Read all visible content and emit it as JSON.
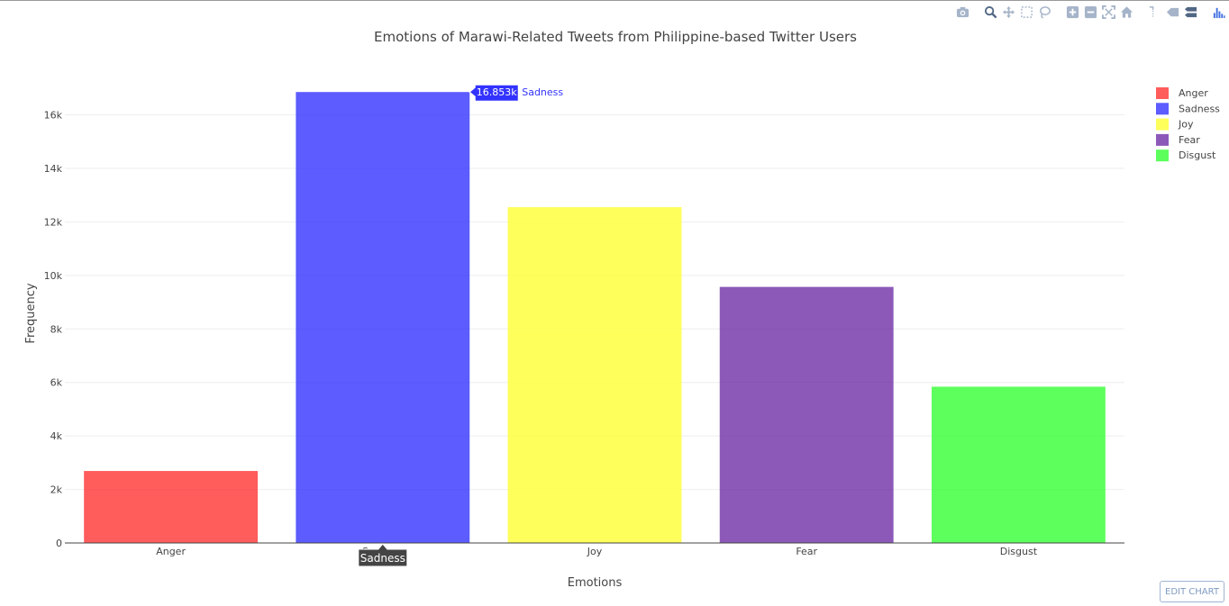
{
  "toolbar": {
    "groups": [
      [
        "camera-icon"
      ],
      [
        "zoom-icon",
        "pan-icon",
        "box-select-icon",
        "lasso-select-icon"
      ],
      [
        "zoom-in-icon",
        "zoom-out-icon",
        "autoscale-icon",
        "reset-axes-icon"
      ],
      [
        "spike-lines-icon",
        "hover-closest-icon",
        "hover-compare-icon"
      ],
      [
        "plotly-logo-icon"
      ]
    ],
    "icon_color": "#a6b4c9",
    "logo_color": "#3f6fe0"
  },
  "edit_chart_label": "EDIT CHART",
  "chart_data": {
    "type": "bar",
    "title": "Emotions of Marawi-Related Tweets from Philippine-based Twitter Users",
    "xlabel": "Emotions",
    "ylabel": "Frequency",
    "categories": [
      "Anger",
      "Sadness",
      "Joy",
      "Fear",
      "Disgust"
    ],
    "values": [
      2690,
      16853,
      12550,
      9570,
      5840
    ],
    "colors": [
      "#ff3333",
      "#3333ff",
      "#ffff33",
      "#7030a8",
      "#33ff33"
    ],
    "ylim": [
      0,
      17600
    ],
    "yticks": [
      0,
      2000,
      4000,
      6000,
      8000,
      10000,
      12000,
      14000,
      16000
    ],
    "ytick_labels": [
      "0",
      "2k",
      "4k",
      "6k",
      "8k",
      "10k",
      "12k",
      "14k",
      "16k"
    ],
    "grid": true,
    "legend": {
      "placement": "top-right",
      "entries": [
        "Anger",
        "Sadness",
        "Joy",
        "Fear",
        "Disgust"
      ]
    },
    "hover": {
      "category": "Sadness",
      "value_label": "16.853k",
      "series_label": "Sadness",
      "axis_label": "Sadness"
    }
  }
}
